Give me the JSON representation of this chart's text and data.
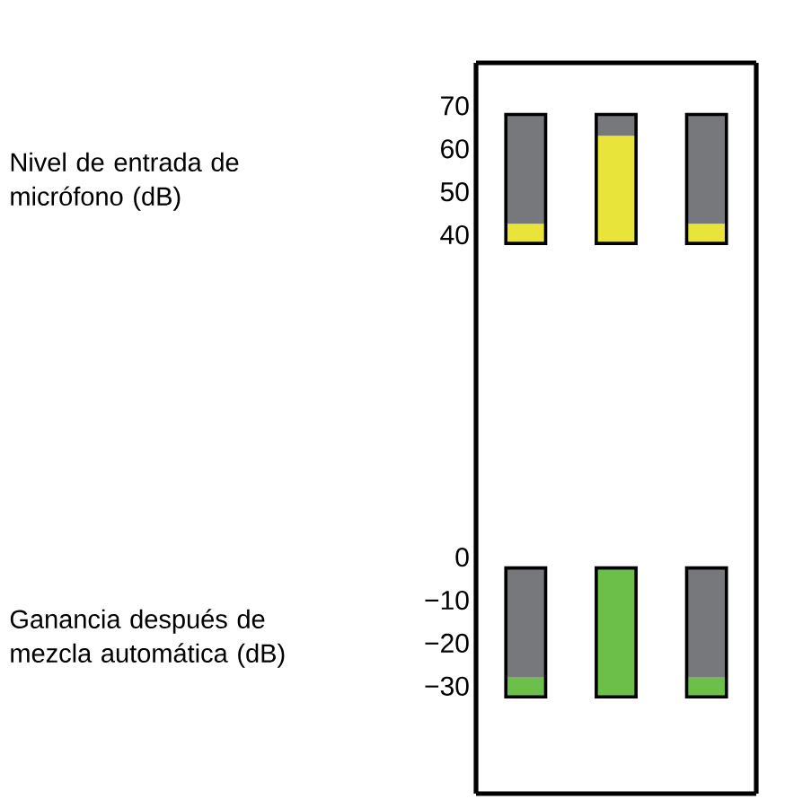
{
  "chart_data": [
    {
      "type": "bar",
      "ylabel": "Nivel de entrada de micrófono (dB)",
      "categories": [
        null,
        null,
        null
      ],
      "series": [
        {
          "color": "#77787b",
          "base": [
            42.5,
            63,
            42.5
          ],
          "values": [
            25.5,
            5,
            25.5
          ]
        },
        {
          "color": "#e8e43a",
          "base": [
            38,
            38,
            38
          ],
          "values": [
            4.5,
            25,
            4.5
          ]
        }
      ],
      "ylim": [
        -5,
        80
      ],
      "yticks": [
        40,
        50,
        60,
        70
      ],
      "tick_labels": "y"
    },
    {
      "type": "bar",
      "ylabel": "Ganancia después de mezcla automática (dB)",
      "categories": [
        null,
        null,
        null
      ],
      "series": [
        {
          "color": "#77787b",
          "base": [
            -28,
            null,
            -28
          ],
          "values": [
            25.5,
            null,
            25.5
          ]
        },
        {
          "color": "#6cc04a",
          "base": [
            -32.5,
            -32.5,
            -32.5
          ],
          "values": [
            4.5,
            30,
            4.5
          ]
        }
      ],
      "ylim": [
        -55,
        30
      ],
      "yticks": [
        {
          "value": -30,
          "label": "−30"
        },
        {
          "value": -20,
          "label": "−20"
        },
        {
          "value": -10,
          "label": "−10"
        },
        {
          "value": 0,
          "label": "0"
        }
      ],
      "tick_labels": "y"
    }
  ]
}
